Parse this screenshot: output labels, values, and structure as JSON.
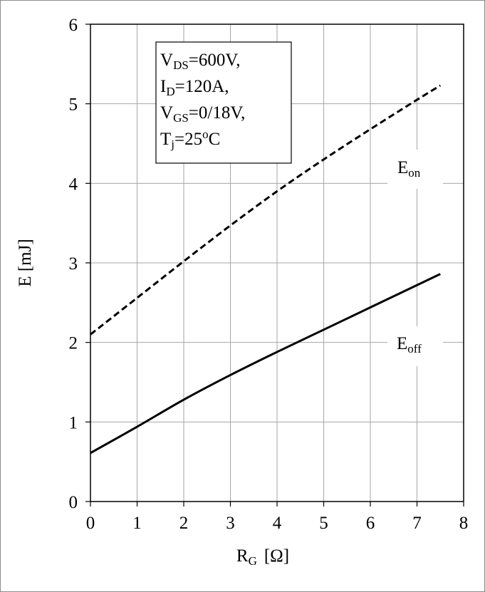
{
  "chart_data": {
    "type": "line",
    "xlabel": {
      "main": "R",
      "sub": "G",
      "unit": "[Ω]"
    },
    "ylabel": "E [mJ]",
    "xlim": [
      0,
      8
    ],
    "ylim": [
      0,
      6
    ],
    "xticks": [
      "0",
      "1",
      "2",
      "3",
      "4",
      "5",
      "6",
      "7",
      "8"
    ],
    "yticks": [
      "0",
      "1",
      "2",
      "3",
      "4",
      "5",
      "6"
    ],
    "grid": true,
    "conditions": [
      {
        "main": "V",
        "sub": "DS",
        "rest": "=600V,"
      },
      {
        "main": "I",
        "sub": "D",
        "rest": "=120A,"
      },
      {
        "main": "V",
        "sub": "GS",
        "rest": "=0/18V,"
      },
      {
        "main": "T",
        "sub": "j",
        "rest": "=25",
        "sup": "o",
        "rest2": "C"
      }
    ],
    "series": [
      {
        "name": "E_on",
        "label_main": "E",
        "label_sub": "on",
        "style": "dashed",
        "x": [
          0,
          1,
          2,
          3,
          4,
          5,
          6,
          7,
          7.5
        ],
        "y": [
          2.1,
          2.56,
          3.02,
          3.47,
          3.9,
          4.3,
          4.68,
          5.05,
          5.23
        ]
      },
      {
        "name": "E_off",
        "label_main": "E",
        "label_sub": "off",
        "style": "solid",
        "x": [
          0,
          1,
          2,
          3,
          4,
          5,
          6,
          7,
          7.5
        ],
        "y": [
          0.61,
          0.94,
          1.28,
          1.59,
          1.88,
          2.16,
          2.44,
          2.72,
          2.86
        ]
      }
    ]
  }
}
